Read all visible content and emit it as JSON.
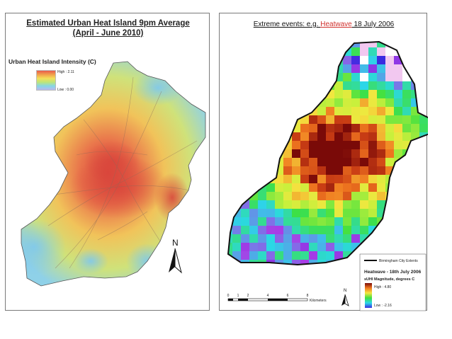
{
  "left_map": {
    "title_line1": "Estimated Urban Heat Island 9pm Average",
    "title_line2": "(April - June 2010)",
    "legend_title": "Urban Heat Island Intensity (C)",
    "legend_high": "High : 2.11",
    "legend_low": "Low : 0.00",
    "north_label": "N"
  },
  "right_map": {
    "header_prefix": "Extreme events: e.g. ",
    "header_highlight": "Heatwave",
    "header_suffix": " 18 July 2006",
    "extent_label": "Birmingham City Extents",
    "legend_title": "Heatwave - 18th July 2006",
    "legend_subtitle": "sUHI Magnitude, degrees C",
    "legend_high": "High : 4.80",
    "legend_low": "Low : -2.16",
    "scale_ticks": [
      "0",
      "1",
      "2",
      "4",
      "6",
      "8"
    ],
    "scale_unit": "Kilometers",
    "north_label": "N"
  },
  "colors": {
    "heat_high": "#e0433a",
    "heat_low": "#8fd1e8",
    "hw_high": "#7a0a08",
    "hw_low": "#3a2be0",
    "highlight": "#d0312d"
  }
}
